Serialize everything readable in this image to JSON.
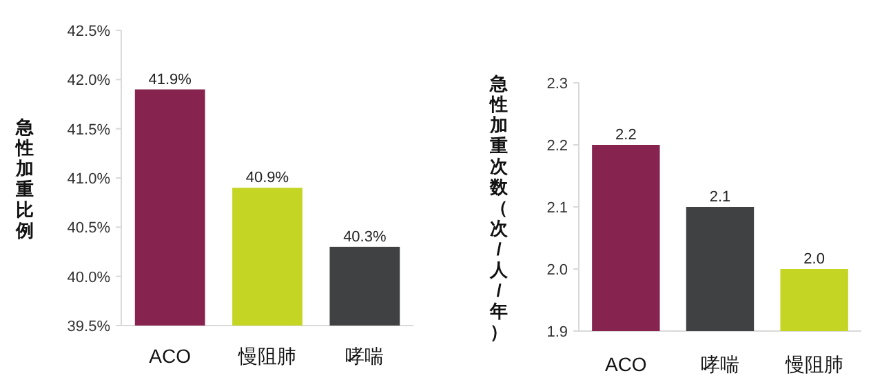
{
  "chart_data": [
    {
      "type": "bar",
      "ylabel": "急性加重比例",
      "categories": [
        "ACO",
        "慢阻肺",
        "哮喘"
      ],
      "values": [
        41.9,
        40.9,
        40.3
      ],
      "colors": [
        "#86234f",
        "#c5d523",
        "#3f4142"
      ],
      "value_labels": [
        "41.9%",
        "40.9%",
        "40.3%"
      ],
      "ylim": [
        39.5,
        42.5
      ],
      "yticks": [
        {
          "value": 39.5,
          "label": "39.5%"
        },
        {
          "value": 40.0,
          "label": "40.0%"
        },
        {
          "value": 40.5,
          "label": "40.5%"
        },
        {
          "value": 41.0,
          "label": "41.0%"
        },
        {
          "value": 41.5,
          "label": "41.5%"
        },
        {
          "value": 42.0,
          "label": "42.0%"
        },
        {
          "value": 42.5,
          "label": "42.5%"
        }
      ]
    },
    {
      "type": "bar",
      "ylabel": "急性加重次数（次/人/年）",
      "categories": [
        "ACO",
        "哮喘",
        "慢阻肺"
      ],
      "values": [
        2.2,
        2.1,
        2.0
      ],
      "colors": [
        "#86234f",
        "#3f4142",
        "#c5d523"
      ],
      "value_labels": [
        "2.2",
        "2.1",
        "2.0"
      ],
      "ylim": [
        1.9,
        2.3
      ],
      "yticks": [
        {
          "value": 1.9,
          "label": "1.9"
        },
        {
          "value": 2.0,
          "label": "2.0"
        },
        {
          "value": 2.1,
          "label": "2.1"
        },
        {
          "value": 2.2,
          "label": "2.2"
        },
        {
          "value": 2.3,
          "label": "2.3"
        }
      ]
    }
  ]
}
